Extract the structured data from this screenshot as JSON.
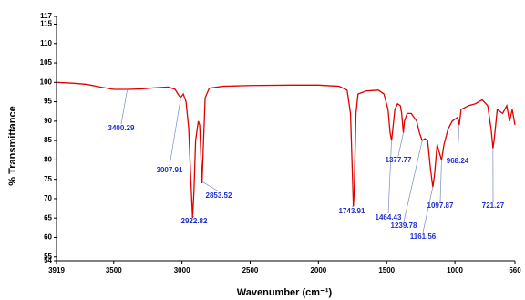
{
  "chart_data": {
    "type": "line",
    "x_label": "Wavenumber (cm⁻¹)",
    "y_label": "% Transmittance",
    "xlim": [
      3919,
      560
    ],
    "xticks": [
      3919,
      3500,
      3000,
      2500,
      2000,
      1500,
      1000,
      560
    ],
    "ylim": [
      54,
      117
    ],
    "yticks": [
      54,
      55,
      60,
      65,
      70,
      75,
      80,
      85,
      90,
      95,
      100,
      105,
      110,
      115,
      117
    ],
    "series": [
      {
        "color": "#e00000",
        "x": [
          3919,
          3800,
          3700,
          3600,
          3500,
          3400,
          3300,
          3200,
          3100,
          3050,
          3020,
          3008,
          2990,
          2970,
          2950,
          2935,
          2922,
          2912,
          2900,
          2880,
          2870,
          2860,
          2853,
          2845,
          2830,
          2800,
          2700,
          2500,
          2200,
          2000,
          1850,
          1790,
          1765,
          1750,
          1744,
          1738,
          1725,
          1710,
          1650,
          1560,
          1520,
          1490,
          1475,
          1464,
          1455,
          1440,
          1420,
          1400,
          1390,
          1378,
          1370,
          1350,
          1320,
          1280,
          1260,
          1240,
          1220,
          1200,
          1180,
          1162,
          1150,
          1130,
          1115,
          1098,
          1080,
          1050,
          1020,
          1000,
          980,
          968,
          955,
          900,
          850,
          800,
          760,
          735,
          721,
          710,
          690,
          650,
          620,
          600,
          580,
          560
        ],
        "values": [
          100,
          99.8,
          99.5,
          98.8,
          98.2,
          98.2,
          98.3,
          98.6,
          98.8,
          98.2,
          96.5,
          96.2,
          97,
          95,
          88,
          75,
          65,
          72,
          85,
          90,
          89,
          80,
          74,
          82,
          96,
          98.5,
          99,
          99.2,
          99.3,
          99.3,
          99,
          98,
          92,
          75,
          68,
          72,
          92,
          97,
          97.8,
          98,
          97,
          93,
          87,
          85,
          88,
          93,
          94.5,
          94,
          92,
          87,
          90,
          92,
          92,
          90,
          87,
          85,
          85.5,
          85,
          78,
          73,
          76,
          84,
          82,
          80,
          84,
          88,
          90,
          90.5,
          91,
          89,
          93,
          94,
          94.5,
          95.5,
          94,
          88,
          83,
          86,
          93,
          92,
          94,
          90,
          93,
          89
        ]
      }
    ],
    "annotations": [
      3400.29,
      3007.91,
      2922.82,
      2853.52,
      1743.91,
      1464.43,
      1377.77,
      1239.78,
      1161.56,
      1097.87,
      968.24,
      721.27
    ]
  }
}
